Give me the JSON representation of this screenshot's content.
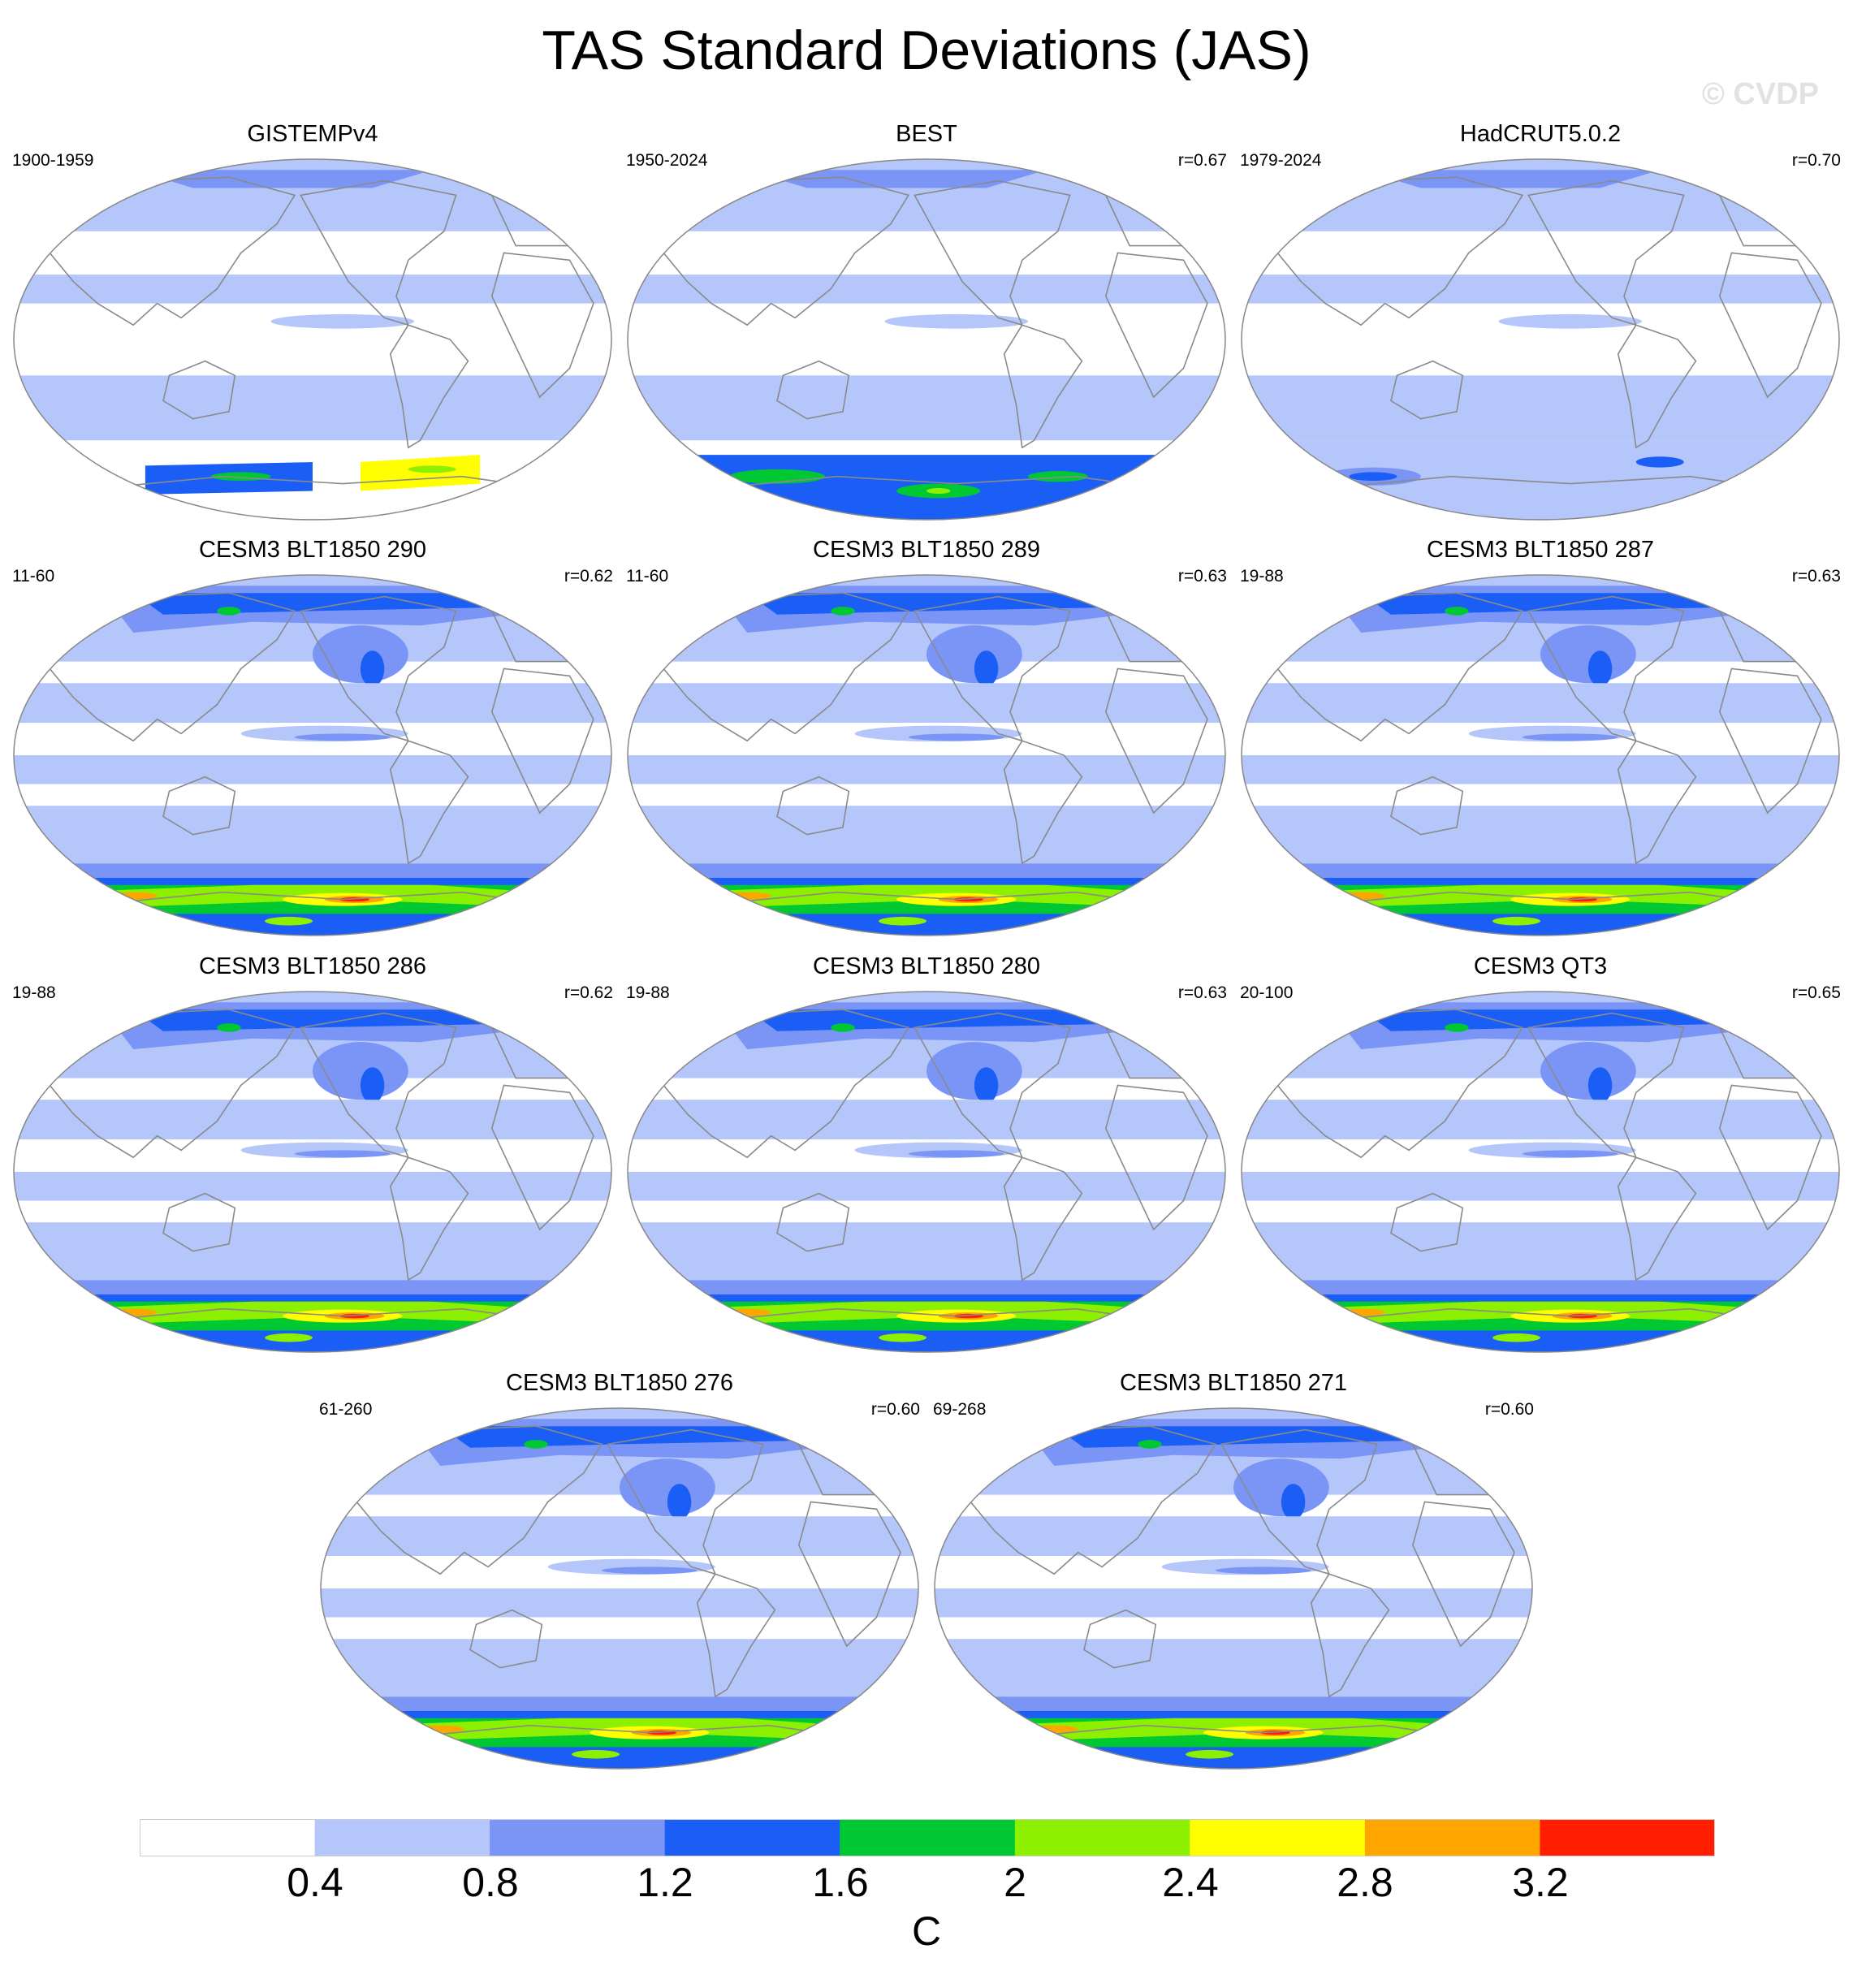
{
  "title": "TAS Standard Deviations (JAS)",
  "watermark": "© CVDP",
  "colors": {
    "levels": [
      "#ffffff",
      "#b4c6fa",
      "#7a95f5",
      "#1a5ef5",
      "#00c832",
      "#8cf000",
      "#ffff00",
      "#ffa500",
      "#ff1e00"
    ],
    "coast": "#8a8a8a",
    "frame": "#888888"
  },
  "panels": [
    {
      "title": "GISTEMPv4",
      "left": "1900-1959",
      "right": "",
      "pattern": "obs-gistemp"
    },
    {
      "title": "BEST",
      "left": "1950-2024",
      "right": "r=0.67",
      "pattern": "obs-best"
    },
    {
      "title": "HadCRUT5.0.2",
      "left": "1979-2024",
      "right": "r=0.70",
      "pattern": "obs-hadcrut"
    },
    {
      "title": "CESM3 BLT1850 290",
      "left": "11-60",
      "right": "r=0.62",
      "pattern": "model"
    },
    {
      "title": "CESM3 BLT1850 289",
      "left": "11-60",
      "right": "r=0.63",
      "pattern": "model"
    },
    {
      "title": "CESM3 BLT1850 287",
      "left": "19-88",
      "right": "r=0.63",
      "pattern": "model"
    },
    {
      "title": "CESM3 BLT1850 286",
      "left": "19-88",
      "right": "r=0.62",
      "pattern": "model"
    },
    {
      "title": "CESM3 BLT1850 280",
      "left": "19-88",
      "right": "r=0.63",
      "pattern": "model"
    },
    {
      "title": "CESM3 QT3",
      "left": "20-100",
      "right": "r=0.65",
      "pattern": "model"
    },
    {
      "title": "CESM3 BLT1850 276",
      "left": "61-260",
      "right": "r=0.60",
      "pattern": "model"
    },
    {
      "title": "CESM3 BLT1850 271",
      "left": "69-268",
      "right": "r=0.60",
      "pattern": "model"
    }
  ],
  "colorbar": {
    "labels": [
      "0.4",
      "0.8",
      "1.2",
      "1.6",
      "2",
      "2.4",
      "2.8",
      "3.2"
    ],
    "units": "C"
  }
}
